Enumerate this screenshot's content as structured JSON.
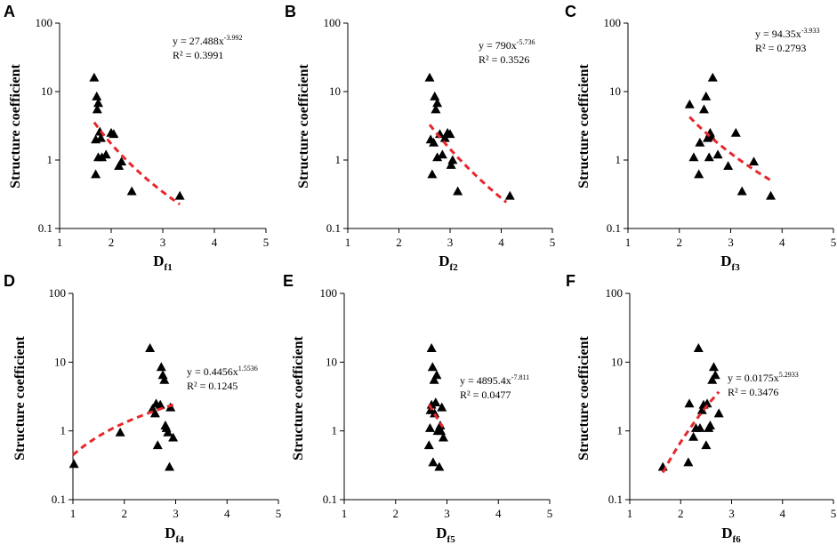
{
  "chart_data": [
    {
      "panel": "A",
      "type": "scatter",
      "xlabel": "D",
      "xlabel_sub": "f1",
      "ylabel": "Structure coefficient",
      "xlim": [
        1,
        5
      ],
      "ylim": [
        0.1,
        100
      ],
      "yscale": "log",
      "xticks": [
        "1",
        "2",
        "3",
        "4",
        "5"
      ],
      "yticks": [
        "0.1",
        "1",
        "10",
        "100"
      ],
      "equation": {
        "prefix": "y = 27.488x",
        "exponent": "-3.992",
        "r2": "R² = 0.3991"
      },
      "fit": {
        "a": 27.488,
        "b": -3.992,
        "xrange": [
          1.67,
          3.33
        ]
      },
      "points": [
        [
          1.67,
          16.0
        ],
        [
          1.7,
          2.0
        ],
        [
          1.72,
          8.5
        ],
        [
          1.73,
          5.5
        ],
        [
          1.75,
          6.8
        ],
        [
          1.78,
          2.6
        ],
        [
          1.8,
          2.1
        ],
        [
          1.7,
          0.62
        ],
        [
          1.75,
          1.1
        ],
        [
          1.82,
          1.1
        ],
        [
          1.9,
          1.2
        ],
        [
          2.0,
          2.5
        ],
        [
          2.05,
          2.4
        ],
        [
          2.15,
          0.82
        ],
        [
          2.2,
          0.95
        ],
        [
          2.4,
          0.35
        ],
        [
          3.33,
          0.3
        ]
      ]
    },
    {
      "panel": "B",
      "type": "scatter",
      "xlabel": "D",
      "xlabel_sub": "f2",
      "ylabel": "Structure coefficient",
      "xlim": [
        1,
        5
      ],
      "ylim": [
        0.1,
        100
      ],
      "yscale": "log",
      "xticks": [
        "1",
        "2",
        "3",
        "4",
        "5"
      ],
      "yticks": [
        "0.1",
        "1",
        "10",
        "100"
      ],
      "equation": {
        "prefix": "y = 790x",
        "exponent": "-5.736",
        "r2": "R² = 0.3526"
      },
      "fit": {
        "a": 790,
        "b": -5.736,
        "xrange": [
          2.6,
          4.1
        ]
      },
      "points": [
        [
          2.6,
          16.0
        ],
        [
          2.62,
          2.0
        ],
        [
          2.65,
          0.62
        ],
        [
          2.68,
          1.8
        ],
        [
          2.7,
          8.5
        ],
        [
          2.72,
          5.5
        ],
        [
          2.75,
          6.8
        ],
        [
          2.75,
          1.1
        ],
        [
          2.8,
          2.4
        ],
        [
          2.85,
          1.2
        ],
        [
          2.95,
          2.5
        ],
        [
          3.0,
          2.4
        ],
        [
          3.02,
          0.85
        ],
        [
          3.05,
          1.0
        ],
        [
          3.15,
          0.35
        ],
        [
          4.17,
          0.3
        ],
        [
          2.9,
          2.1
        ]
      ]
    },
    {
      "panel": "C",
      "type": "scatter",
      "xlabel": "D",
      "xlabel_sub": "f3",
      "ylabel": "Structure coefficient",
      "xlim": [
        1,
        5
      ],
      "ylim": [
        0.1,
        100
      ],
      "yscale": "log",
      "xticks": [
        "1",
        "2",
        "3",
        "4",
        "5"
      ],
      "yticks": [
        "0.1",
        "1",
        "10",
        "100"
      ],
      "equation": {
        "prefix": "y = 94.35x",
        "exponent": "-3.933",
        "r2": "R² = 0.2793"
      },
      "fit": {
        "a": 94.35,
        "b": -3.933,
        "xrange": [
          2.2,
          3.8
        ]
      },
      "points": [
        [
          2.2,
          6.5
        ],
        [
          2.28,
          1.1
        ],
        [
          2.38,
          0.62
        ],
        [
          2.4,
          1.8
        ],
        [
          2.48,
          5.5
        ],
        [
          2.52,
          8.5
        ],
        [
          2.55,
          2.1
        ],
        [
          2.58,
          1.1
        ],
        [
          2.6,
          2.5
        ],
        [
          2.62,
          2.2
        ],
        [
          2.65,
          16.0
        ],
        [
          2.75,
          1.2
        ],
        [
          2.95,
          0.82
        ],
        [
          3.1,
          2.5
        ],
        [
          3.22,
          0.35
        ],
        [
          3.45,
          0.95
        ],
        [
          3.78,
          0.3
        ]
      ]
    },
    {
      "panel": "D",
      "type": "scatter",
      "xlabel": "D",
      "xlabel_sub": "f4",
      "ylabel": "Structure coefficient",
      "xlim": [
        1,
        5
      ],
      "ylim": [
        0.1,
        100
      ],
      "yscale": "log",
      "xticks": [
        "1",
        "2",
        "3",
        "4",
        "5"
      ],
      "yticks": [
        "0.1",
        "1",
        "10",
        "100"
      ],
      "equation": {
        "prefix": "y = 0.4456x",
        "exponent": "1.5536",
        "r2": "R² = 0.1245"
      },
      "fit": {
        "a": 0.4456,
        "b": 1.5536,
        "xrange": [
          1.0,
          3.0
        ]
      },
      "points": [
        [
          1.02,
          0.33
        ],
        [
          1.92,
          0.95
        ],
        [
          2.5,
          16.0
        ],
        [
          2.55,
          2.1
        ],
        [
          2.6,
          1.8
        ],
        [
          2.62,
          2.5
        ],
        [
          2.65,
          0.62
        ],
        [
          2.7,
          2.4
        ],
        [
          2.72,
          8.5
        ],
        [
          2.75,
          6.5
        ],
        [
          2.78,
          5.5
        ],
        [
          2.8,
          1.2
        ],
        [
          2.82,
          1.1
        ],
        [
          2.85,
          0.95
        ],
        [
          2.88,
          0.3
        ],
        [
          2.9,
          2.2
        ],
        [
          2.95,
          0.8
        ]
      ]
    },
    {
      "panel": "E",
      "type": "scatter",
      "xlabel": "D",
      "xlabel_sub": "f5",
      "ylabel": "Structure coefficient",
      "xlim": [
        1,
        5
      ],
      "ylim": [
        0.1,
        100
      ],
      "yscale": "log",
      "xticks": [
        "1",
        "2",
        "3",
        "4",
        "5"
      ],
      "yticks": [
        "0.1",
        "1",
        "10",
        "100"
      ],
      "equation": {
        "prefix": "y = 4895.4x",
        "exponent": "-7.811",
        "r2": "R² = 0.0477"
      },
      "fit": {
        "a": 4895.4,
        "b": -7.811,
        "xrange": [
          2.65,
          2.92
        ]
      },
      "points": [
        [
          2.65,
          0.62
        ],
        [
          2.67,
          1.1
        ],
        [
          2.68,
          2.0
        ],
        [
          2.7,
          16.0
        ],
        [
          2.72,
          8.5
        ],
        [
          2.73,
          0.35
        ],
        [
          2.75,
          5.5
        ],
        [
          2.76,
          1.8
        ],
        [
          2.78,
          2.6
        ],
        [
          2.8,
          6.5
        ],
        [
          2.82,
          1.0
        ],
        [
          2.85,
          0.3
        ],
        [
          2.87,
          1.2
        ],
        [
          2.9,
          2.2
        ],
        [
          2.93,
          0.8
        ],
        [
          2.7,
          2.4
        ],
        [
          2.88,
          1.0
        ]
      ]
    },
    {
      "panel": "F",
      "type": "scatter",
      "xlabel": "D",
      "xlabel_sub": "f6",
      "ylabel": "Structure coefficient",
      "xlim": [
        1,
        5
      ],
      "ylim": [
        0.1,
        100
      ],
      "yscale": "log",
      "xticks": [
        "1",
        "2",
        "3",
        "4",
        "5"
      ],
      "yticks": [
        "0.1",
        "1",
        "10",
        "100"
      ],
      "equation": {
        "prefix": "y = 0.0175x",
        "exponent": "5.2933",
        "r2": "R² = 0.3476"
      },
      "fit": {
        "a": 0.0175,
        "b": 5.2933,
        "xrange": [
          1.65,
          2.75
        ]
      },
      "points": [
        [
          1.65,
          0.3
        ],
        [
          2.15,
          0.35
        ],
        [
          2.17,
          2.5
        ],
        [
          2.25,
          0.82
        ],
        [
          2.3,
          1.1
        ],
        [
          2.35,
          16.0
        ],
        [
          2.38,
          1.1
        ],
        [
          2.42,
          2.0
        ],
        [
          2.45,
          2.4
        ],
        [
          2.5,
          0.62
        ],
        [
          2.52,
          2.5
        ],
        [
          2.55,
          1.1
        ],
        [
          2.58,
          1.2
        ],
        [
          2.62,
          5.5
        ],
        [
          2.65,
          8.5
        ],
        [
          2.68,
          6.5
        ],
        [
          2.75,
          1.8
        ]
      ]
    }
  ]
}
